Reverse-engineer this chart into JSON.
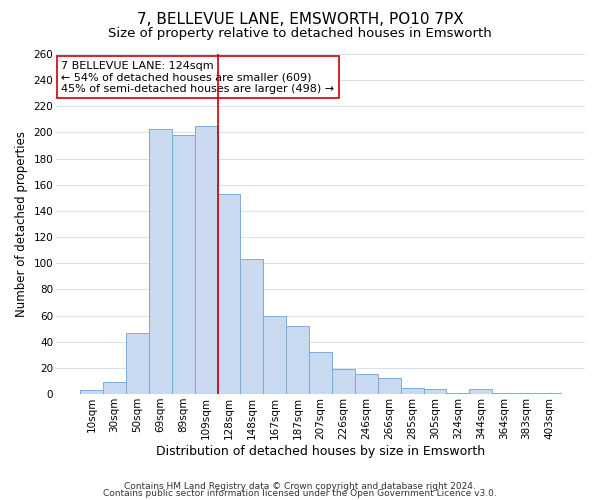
{
  "title": "7, BELLEVUE LANE, EMSWORTH, PO10 7PX",
  "subtitle": "Size of property relative to detached houses in Emsworth",
  "xlabel": "Distribution of detached houses by size in Emsworth",
  "ylabel": "Number of detached properties",
  "bar_labels": [
    "10sqm",
    "30sqm",
    "50sqm",
    "69sqm",
    "89sqm",
    "109sqm",
    "128sqm",
    "148sqm",
    "167sqm",
    "187sqm",
    "207sqm",
    "226sqm",
    "246sqm",
    "266sqm",
    "285sqm",
    "305sqm",
    "324sqm",
    "344sqm",
    "364sqm",
    "383sqm",
    "403sqm"
  ],
  "bar_values": [
    3,
    9,
    47,
    203,
    198,
    205,
    153,
    103,
    60,
    52,
    32,
    19,
    15,
    12,
    5,
    4,
    1,
    4,
    1,
    1,
    1
  ],
  "bar_color": "#c9d9f0",
  "bar_edgecolor": "#7eabd4",
  "vline_color": "#cc0000",
  "vline_x_index": 6,
  "annotation_text": "7 BELLEVUE LANE: 124sqm\n← 54% of detached houses are smaller (609)\n45% of semi-detached houses are larger (498) →",
  "annotation_box_edgecolor": "#cc0000",
  "annotation_box_facecolor": "#ffffff",
  "ylim": [
    0,
    260
  ],
  "yticks": [
    0,
    20,
    40,
    60,
    80,
    100,
    120,
    140,
    160,
    180,
    200,
    220,
    240,
    260
  ],
  "footer_line1": "Contains HM Land Registry data © Crown copyright and database right 2024.",
  "footer_line2": "Contains public sector information licensed under the Open Government Licence v3.0.",
  "title_fontsize": 11,
  "subtitle_fontsize": 9.5,
  "xlabel_fontsize": 9,
  "ylabel_fontsize": 8.5,
  "tick_fontsize": 7.5,
  "annotation_fontsize": 8,
  "footer_fontsize": 6.5,
  "background_color": "#ffffff",
  "grid_color": "#d0dded"
}
